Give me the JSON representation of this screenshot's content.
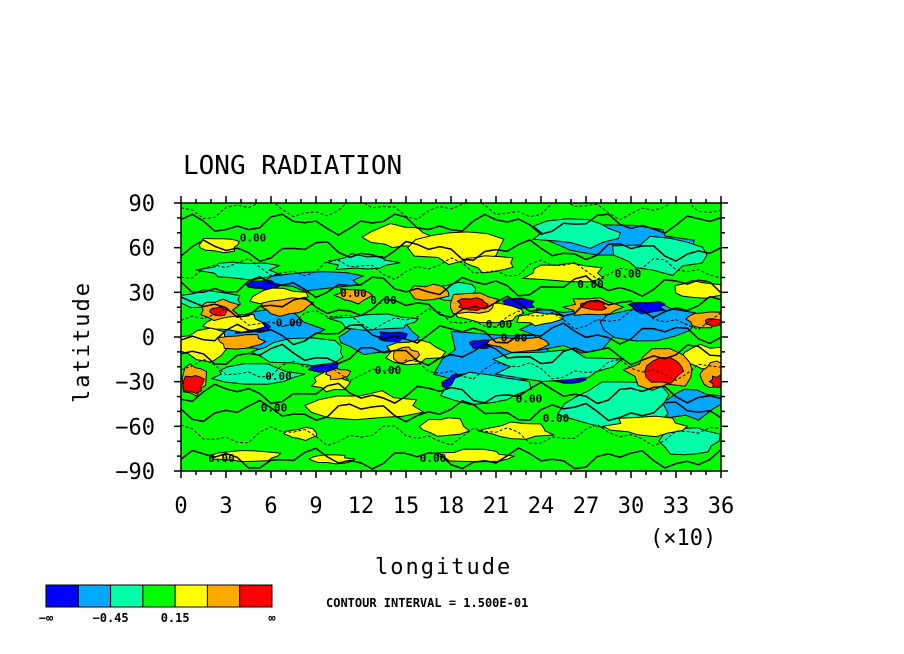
{
  "chart_data": {
    "type": "heatmap",
    "title": "LONG RADIATION",
    "xlabel": "longitude",
    "ylabel": "latitude",
    "x_scale_note": "(×10)",
    "xlim": [
      0,
      36
    ],
    "ylim": [
      -90,
      90
    ],
    "x_ticks": [
      "0",
      "3",
      "6",
      "9",
      "12",
      "15",
      "18",
      "21",
      "24",
      "27",
      "30",
      "33",
      "36"
    ],
    "y_ticks": [
      "90",
      "60",
      "30",
      "0",
      "−30",
      "−60",
      "−90"
    ],
    "x_tick_values": [
      0,
      3,
      6,
      9,
      12,
      15,
      18,
      21,
      24,
      27,
      30,
      33,
      36
    ],
    "y_tick_values": [
      90,
      60,
      30,
      0,
      -30,
      -60,
      -90
    ],
    "contour_interval_text": "CONTOUR INTERVAL = 1.500E-01",
    "contour_labels": [
      {
        "text": "0.00",
        "lon": 4.8,
        "lat": 64
      },
      {
        "text": "0.00",
        "lon": 11.5,
        "lat": 27
      },
      {
        "text": "0.00",
        "lon": 13.5,
        "lat": 22
      },
      {
        "text": "0.00",
        "lon": 7.2,
        "lat": 7
      },
      {
        "text": "0.00",
        "lon": 6.5,
        "lat": -29
      },
      {
        "text": "0.00",
        "lon": 13.8,
        "lat": -25
      },
      {
        "text": "0.00",
        "lon": 6.2,
        "lat": -50
      },
      {
        "text": "0.00",
        "lon": 21.2,
        "lat": 6
      },
      {
        "text": "0.00",
        "lon": 22.2,
        "lat": -3
      },
      {
        "text": "0.00",
        "lon": 23.2,
        "lat": -44
      },
      {
        "text": "0.00",
        "lon": 25.0,
        "lat": -57
      },
      {
        "text": "0.00",
        "lon": 27.3,
        "lat": 33
      },
      {
        "text": "0.00",
        "lon": 29.8,
        "lat": 40
      },
      {
        "text": "0.00",
        "lon": 16.8,
        "lat": -84
      },
      {
        "text": "0.00",
        "lon": 2.7,
        "lat": -84
      }
    ],
    "colorbar": {
      "colors": [
        "#0000ff",
        "#00a8ff",
        "#00ffa8",
        "#00ff00",
        "#ffff00",
        "#ffa800",
        "#ff0000"
      ],
      "labels": [
        "−∞",
        "−0.45",
        "0.15",
        "∞"
      ],
      "label_positions": [
        0,
        2,
        4,
        7
      ]
    },
    "blobs": [
      {
        "lon": 4.5,
        "lat": -80,
        "rlon": 2.2,
        "rlat": 4,
        "level": 4
      },
      {
        "lon": 10,
        "lat": -82,
        "rlon": 1.4,
        "rlat": 3,
        "level": 4
      },
      {
        "lon": 19.5,
        "lat": -80,
        "rlon": 2.5,
        "rlat": 4,
        "level": 4
      },
      {
        "lon": 14.5,
        "lat": 67,
        "rlon": 2,
        "rlat": 8,
        "level": 4
      },
      {
        "lon": 18.5,
        "lat": 60,
        "rlon": 2.8,
        "rlat": 11,
        "level": 4
      },
      {
        "lon": 20.5,
        "lat": 50,
        "rlon": 1.5,
        "rlat": 6,
        "level": 4
      },
      {
        "lon": 25.5,
        "lat": 43,
        "rlon": 2.5,
        "rlat": 7,
        "level": 4
      },
      {
        "lon": 12.5,
        "lat": -46,
        "rlon": 3.6,
        "rlat": 9,
        "level": 4
      },
      {
        "lon": 17.5,
        "lat": -60,
        "rlon": 1.6,
        "rlat": 6,
        "level": 4
      },
      {
        "lon": 22.5,
        "lat": -63,
        "rlon": 2.4,
        "rlat": 6,
        "level": 4
      },
      {
        "lon": 10,
        "lat": -30,
        "rlon": 1.2,
        "rlat": 6,
        "level": 4
      },
      {
        "lon": 1.5,
        "lat": -5,
        "rlon": 2,
        "rlat": 10,
        "level": 4
      },
      {
        "lon": 3.5,
        "lat": 10,
        "rlon": 2,
        "rlat": 6,
        "level": 4
      },
      {
        "lon": 6.5,
        "lat": 27,
        "rlon": 1.8,
        "rlat": 6,
        "level": 4
      },
      {
        "lon": 15.5,
        "lat": -10,
        "rlon": 1.8,
        "rlat": 8,
        "level": 4
      },
      {
        "lon": 20.5,
        "lat": 16,
        "rlon": 2.5,
        "rlat": 6,
        "level": 4
      },
      {
        "lon": 24,
        "lat": 12,
        "rlon": 1.5,
        "rlat": 4,
        "level": 4
      },
      {
        "lon": 34.5,
        "lat": 32,
        "rlon": 1.8,
        "rlat": 6,
        "level": 4
      },
      {
        "lon": 35,
        "lat": -14,
        "rlon": 1.5,
        "rlat": 8,
        "level": 4
      },
      {
        "lon": 31,
        "lat": -60,
        "rlon": 2.5,
        "rlat": 6,
        "level": 4
      },
      {
        "lon": 2.5,
        "lat": 62,
        "rlon": 1.5,
        "rlat": 5,
        "level": 4
      },
      {
        "lon": 8,
        "lat": -65,
        "rlon": 1.2,
        "rlat": 4,
        "level": 4
      },
      {
        "lon": 4,
        "lat": 45,
        "rlon": 2.5,
        "rlat": 6,
        "level": 2
      },
      {
        "lon": 12,
        "lat": 50,
        "rlon": 2.2,
        "rlat": 5,
        "level": 2
      },
      {
        "lon": 26.5,
        "lat": 70,
        "rlon": 3,
        "rlat": 9,
        "level": 2
      },
      {
        "lon": 32,
        "lat": 55,
        "rlon": 3,
        "rlat": 12,
        "level": 2
      },
      {
        "lon": 29,
        "lat": -45,
        "rlon": 4,
        "rlat": 15,
        "level": 2
      },
      {
        "lon": 34,
        "lat": -70,
        "rlon": 2,
        "rlat": 10,
        "level": 2
      },
      {
        "lon": 25,
        "lat": -20,
        "rlon": 4,
        "rlat": 10,
        "level": 2
      },
      {
        "lon": 20,
        "lat": -35,
        "rlon": 3,
        "rlat": 10,
        "level": 2
      },
      {
        "lon": 8,
        "lat": -10,
        "rlon": 3,
        "rlat": 8,
        "level": 2
      },
      {
        "lon": 13,
        "lat": 10,
        "rlon": 3,
        "rlat": 5,
        "level": 2
      },
      {
        "lon": 5,
        "lat": -25,
        "rlon": 3,
        "rlat": 6,
        "level": 2
      },
      {
        "lon": 2,
        "lat": 25,
        "rlon": 2,
        "rlat": 6,
        "level": 2
      },
      {
        "lon": 18,
        "lat": 30,
        "rlon": 2,
        "rlat": 6,
        "level": 2
      },
      {
        "lon": 2.5,
        "lat": 18,
        "rlon": 1.3,
        "rlat": 7,
        "level": 5
      },
      {
        "lon": 7,
        "lat": 20,
        "rlon": 1.8,
        "rlat": 6,
        "level": 5
      },
      {
        "lon": 11.5,
        "lat": 28,
        "rlon": 1.2,
        "rlat": 5,
        "level": 5
      },
      {
        "lon": 16.5,
        "lat": 30,
        "rlon": 1.3,
        "rlat": 5,
        "level": 5
      },
      {
        "lon": 19.5,
        "lat": 22,
        "rlon": 1.8,
        "rlat": 7,
        "level": 5
      },
      {
        "lon": 22.5,
        "lat": -5,
        "rlon": 1.8,
        "rlat": 5,
        "level": 5
      },
      {
        "lon": 27.5,
        "lat": 20,
        "rlon": 1.8,
        "rlat": 6,
        "level": 5
      },
      {
        "lon": 32,
        "lat": -22,
        "rlon": 2.2,
        "rlat": 12,
        "level": 5
      },
      {
        "lon": 35,
        "lat": 12,
        "rlon": 1.3,
        "rlat": 5,
        "level": 5
      },
      {
        "lon": 35.5,
        "lat": -25,
        "rlon": 0.9,
        "rlat": 8,
        "level": 5
      },
      {
        "lon": 0.8,
        "lat": -28,
        "rlon": 0.9,
        "rlat": 10,
        "level": 5
      },
      {
        "lon": 4,
        "lat": -3,
        "rlon": 1.5,
        "rlat": 5,
        "level": 5
      },
      {
        "lon": 10.5,
        "lat": -25,
        "rlon": 0.8,
        "rlat": 4,
        "level": 5
      },
      {
        "lon": 15,
        "lat": -12,
        "rlon": 0.8,
        "rlat": 5,
        "level": 5
      },
      {
        "lon": 0.8,
        "lat": -31,
        "rlon": 0.8,
        "rlat": 6,
        "level": 6
      },
      {
        "lon": 19.5,
        "lat": 22,
        "rlon": 1,
        "rlat": 4,
        "level": 6
      },
      {
        "lon": 32.3,
        "lat": -23,
        "rlon": 1.3,
        "rlat": 8,
        "level": 6
      },
      {
        "lon": 2.5,
        "lat": 17,
        "rlon": 0.6,
        "rlat": 3,
        "level": 6
      },
      {
        "lon": 27.5,
        "lat": 21,
        "rlon": 0.8,
        "rlat": 3,
        "level": 6
      },
      {
        "lon": 35.8,
        "lat": -30,
        "rlon": 0.5,
        "rlat": 4,
        "level": 6
      },
      {
        "lon": 35.5,
        "lat": 10,
        "rlon": 0.6,
        "rlat": 2.5,
        "level": 6
      },
      {
        "lon": 5.5,
        "lat": 5,
        "rlon": 3.5,
        "rlat": 14,
        "level": 1
      },
      {
        "lon": 13,
        "lat": 0,
        "rlon": 3,
        "rlat": 10,
        "level": 1
      },
      {
        "lon": 21,
        "lat": -15,
        "rlon": 4,
        "rlat": 20,
        "level": 1
      },
      {
        "lon": 26,
        "lat": 5,
        "rlon": 3,
        "rlat": 15,
        "level": 1
      },
      {
        "lon": 31,
        "lat": 10,
        "rlon": 3,
        "rlat": 12,
        "level": 1
      },
      {
        "lon": 34,
        "lat": -45,
        "rlon": 2,
        "rlat": 10,
        "level": 1
      },
      {
        "lon": 29,
        "lat": 65,
        "rlon": 5,
        "rlat": 9,
        "level": 1
      },
      {
        "lon": 9,
        "lat": 38,
        "rlon": 3,
        "rlat": 6,
        "level": 1
      },
      {
        "lon": 5.5,
        "lat": 35,
        "rlon": 1,
        "rlat": 3,
        "level": 0
      },
      {
        "lon": 4.5,
        "lat": 7,
        "rlon": 1.2,
        "rlat": 5,
        "level": 0
      },
      {
        "lon": 9.5,
        "lat": -20,
        "rlon": 1,
        "rlat": 4,
        "level": 0
      },
      {
        "lon": 14,
        "lat": 0,
        "rlon": 1,
        "rlat": 4,
        "level": 0
      },
      {
        "lon": 19,
        "lat": -30,
        "rlon": 1.5,
        "rlat": 6,
        "level": 0
      },
      {
        "lon": 22.5,
        "lat": 22,
        "rlon": 1,
        "rlat": 4,
        "level": 0
      },
      {
        "lon": 25.8,
        "lat": -27,
        "rlon": 1.2,
        "rlat": 4,
        "level": 0
      },
      {
        "lon": 31,
        "lat": 20,
        "rlon": 1.2,
        "rlat": 4,
        "level": 0
      },
      {
        "lon": 20,
        "lat": -5,
        "rlon": 0.8,
        "rlat": 3,
        "level": 0
      }
    ]
  }
}
